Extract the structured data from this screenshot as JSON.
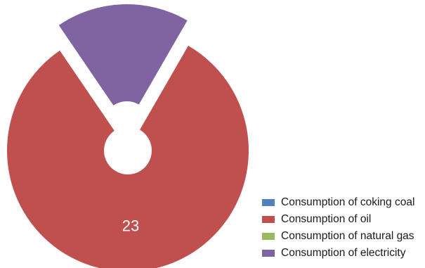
{
  "chart_data": {
    "type": "pie",
    "title": "",
    "categories": [
      "Consumption of coking coal",
      "Consumption of oil",
      "Consumption of natural gas",
      "Consumption of electricity"
    ],
    "series": [
      {
        "values": [
          0,
          23,
          0,
          5
        ],
        "colors": [
          "#4f81bd",
          "#c0504d",
          "#9bbb59",
          "#8064a2"
        ],
        "data_labels": [
          "",
          "23",
          "",
          ""
        ],
        "exploded": [
          false,
          false,
          false,
          true
        ]
      }
    ],
    "legend_position": "bottom-right"
  }
}
